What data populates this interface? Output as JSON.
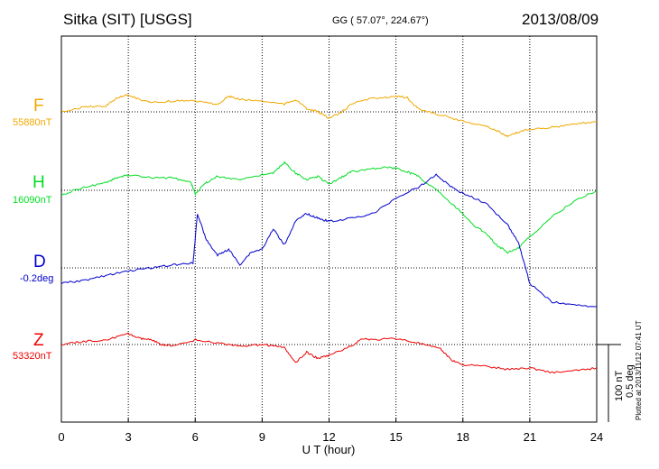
{
  "header": {
    "station": "Sitka (SIT)  [USGS]",
    "coords": "GG ( 57.07°, 224.67°)",
    "date": "2013/08/09"
  },
  "footer": {
    "plotted": "Plotted at 2013/11/12 07:41 UT"
  },
  "scale": {
    "nT_label": "100 nT",
    "deg_label": "0.5 deg"
  },
  "chart_data": {
    "type": "line",
    "xlabel": "U T (hour)",
    "xlim": [
      0,
      24
    ],
    "xticks": [
      "0",
      "3",
      "6",
      "9",
      "12",
      "15",
      "18",
      "21",
      "24"
    ],
    "grid": true,
    "series": [
      {
        "name": "F",
        "baseline_label": "55880nT",
        "color": "#f0a800",
        "baseline": 55880,
        "units": "nT",
        "x": [
          0,
          1,
          2,
          2.5,
          3,
          3.5,
          4,
          5,
          6,
          7,
          7.5,
          8,
          9,
          10,
          10.5,
          11,
          11.5,
          12,
          12.5,
          13,
          14,
          15,
          15.5,
          16,
          17,
          18,
          19,
          19.5,
          20,
          20.5,
          21,
          22,
          23,
          24
        ],
        "y": [
          55880,
          55886,
          55888,
          55898,
          55902,
          55896,
          55892,
          55894,
          55894,
          55890,
          55900,
          55896,
          55894,
          55890,
          55896,
          55884,
          55880,
          55872,
          55878,
          55890,
          55898,
          55900,
          55898,
          55884,
          55876,
          55868,
          55862,
          55856,
          55848,
          55854,
          55858,
          55860,
          55864,
          55868
        ]
      },
      {
        "name": "H",
        "baseline_label": "16090nT",
        "color": "#00dd22",
        "baseline": 16090,
        "units": "nT",
        "x": [
          0,
          1,
          2,
          2.5,
          3,
          4,
          5,
          5.8,
          6,
          6.5,
          7,
          8,
          9,
          9.5,
          10,
          10.5,
          11,
          11.5,
          12,
          12.5,
          13,
          14,
          14.5,
          15,
          15.5,
          16,
          17,
          18,
          18.5,
          19,
          19.5,
          20,
          20.5,
          21,
          22,
          23,
          24
        ],
        "y": [
          16084,
          16094,
          16100,
          16106,
          16110,
          16106,
          16106,
          16100,
          16086,
          16100,
          16108,
          16104,
          16110,
          16112,
          16126,
          16112,
          16104,
          16108,
          16098,
          16106,
          16114,
          16118,
          16120,
          16118,
          16114,
          16108,
          16086,
          16060,
          16044,
          16036,
          16020,
          16010,
          16016,
          16030,
          16056,
          16076,
          16090
        ]
      },
      {
        "name": "D",
        "baseline_label": "-0.2deg",
        "color": "#0000cc",
        "baseline": -0.2,
        "units": "deg",
        "x": [
          0,
          1,
          2,
          3,
          4,
          5,
          5.9,
          6.1,
          6.5,
          7,
          7.5,
          8,
          8.5,
          9,
          9.5,
          10,
          10.5,
          11,
          11.5,
          12,
          13,
          14,
          15,
          16,
          16.8,
          17.5,
          18,
          19,
          20,
          20.5,
          21,
          22,
          23,
          24
        ],
        "y": [
          -0.3,
          -0.28,
          -0.25,
          -0.22,
          -0.2,
          -0.18,
          -0.17,
          0.15,
          -0.02,
          -0.12,
          -0.08,
          -0.18,
          -0.1,
          -0.08,
          0.05,
          -0.05,
          0.1,
          0.15,
          0.12,
          0.1,
          0.12,
          0.15,
          0.25,
          0.32,
          0.4,
          0.32,
          0.28,
          0.22,
          0.08,
          -0.04,
          -0.3,
          -0.42,
          -0.44,
          -0.45
        ]
      },
      {
        "name": "Z",
        "baseline_label": "53320nT",
        "color": "#ee0000",
        "baseline": 53320,
        "units": "nT",
        "x": [
          0,
          1,
          2,
          3,
          3.5,
          4,
          4.5,
          5,
          6,
          7,
          8,
          9,
          10,
          10.5,
          11,
          11.5,
          12,
          13,
          13.5,
          14,
          15,
          16,
          17,
          17.5,
          18,
          19,
          20,
          21,
          22,
          23,
          24
        ],
        "y": [
          53320,
          53324,
          53326,
          53334,
          53328,
          53326,
          53320,
          53318,
          53326,
          53322,
          53318,
          53320,
          53316,
          53296,
          53310,
          53302,
          53306,
          53318,
          53328,
          53326,
          53328,
          53322,
          53314,
          53300,
          53294,
          53292,
          53288,
          53290,
          53284,
          53286,
          53290
        ]
      }
    ]
  }
}
